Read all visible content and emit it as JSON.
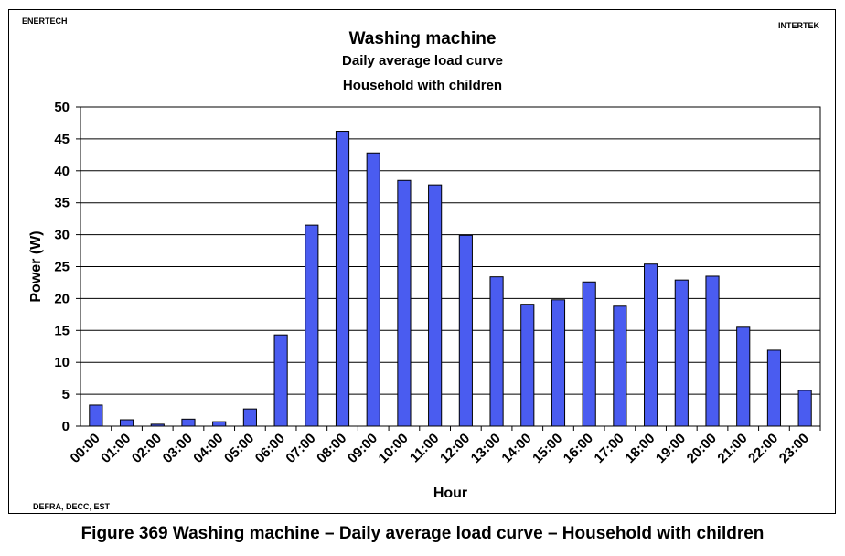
{
  "header": {
    "left_label": "ENERTECH",
    "right_label": "INTERTEK",
    "footer_label": "DEFRA, DECC, EST"
  },
  "caption": "Figure 369 Washing machine – Daily average load curve – Household with children",
  "colors": {
    "bar_fill": "#4a5cf0",
    "bar_stroke": "#000000",
    "grid": "#000000"
  },
  "chart_data": {
    "type": "bar",
    "title": "Washing machine",
    "subtitle_1": "Daily average load curve",
    "subtitle_2": "Household with children",
    "xlabel": "Hour",
    "ylabel": "Power (W)",
    "ylim": [
      0,
      50
    ],
    "yticks": [
      0,
      5,
      10,
      15,
      20,
      25,
      30,
      35,
      40,
      45,
      50
    ],
    "grid": true,
    "categories": [
      "00:00",
      "01:00",
      "02:00",
      "03:00",
      "04:00",
      "05:00",
      "06:00",
      "07:00",
      "08:00",
      "09:00",
      "10:00",
      "11:00",
      "12:00",
      "13:00",
      "14:00",
      "15:00",
      "16:00",
      "17:00",
      "18:00",
      "19:00",
      "20:00",
      "21:00",
      "22:00",
      "23:00"
    ],
    "values": [
      3.3,
      1.0,
      0.3,
      1.1,
      0.7,
      2.7,
      14.3,
      31.5,
      46.2,
      42.8,
      38.5,
      37.8,
      29.9,
      23.4,
      19.1,
      19.8,
      22.6,
      18.8,
      25.4,
      22.9,
      23.5,
      15.5,
      11.9,
      5.6
    ]
  }
}
